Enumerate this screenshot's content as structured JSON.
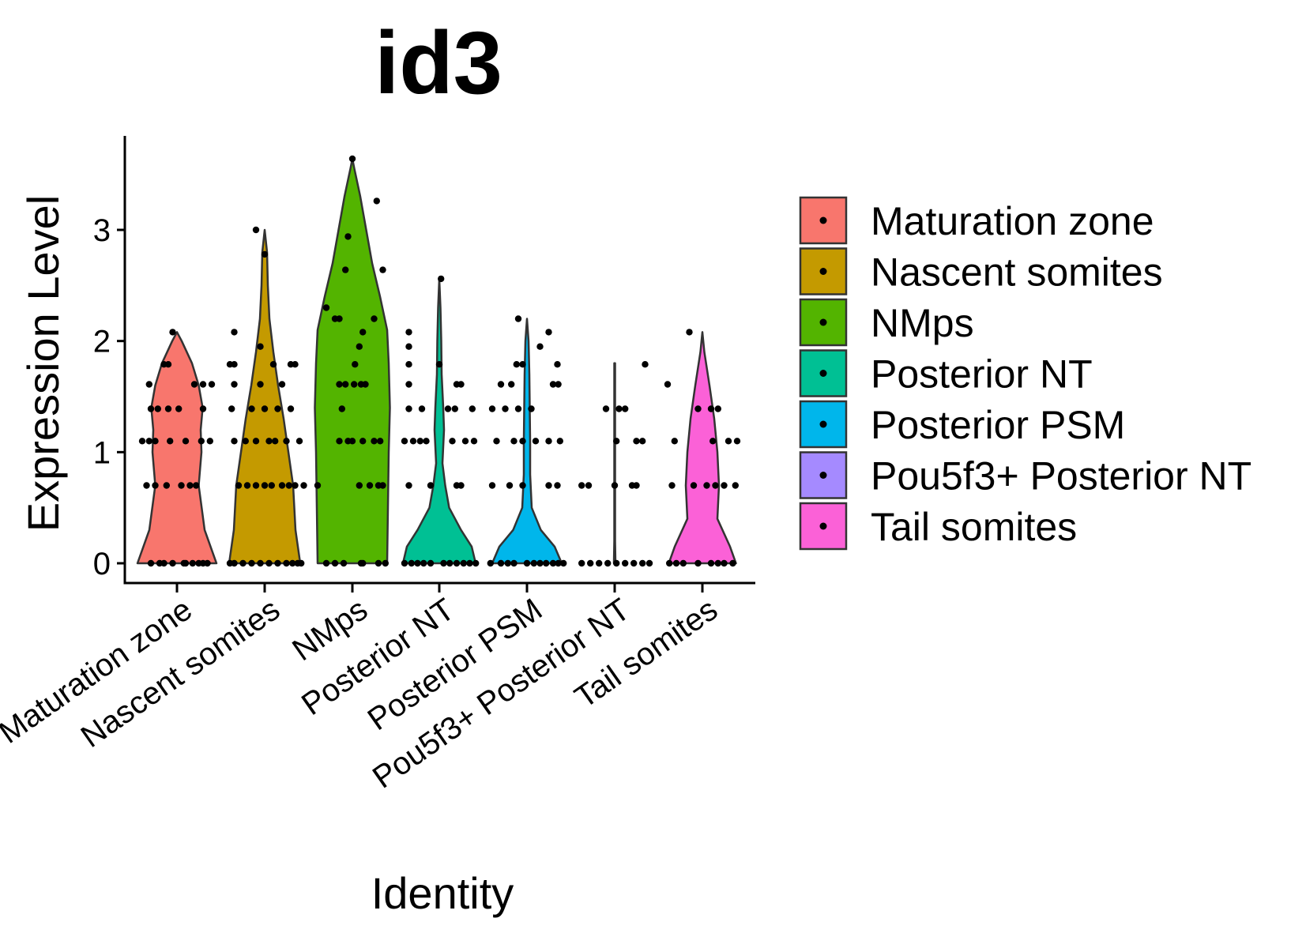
{
  "chart_data": {
    "type": "violin",
    "title": "id3",
    "xlabel": "Identity",
    "ylabel": "Expression Level",
    "ylim": [
      -0.15,
      3.85
    ],
    "yticks": [
      0,
      1,
      2,
      3
    ],
    "categories": [
      "Maturation zone",
      "Nascent somites",
      "NMps",
      "Posterior NT",
      "Posterior PSM",
      "Pou5f3+ Posterior NT",
      "Tail somites"
    ],
    "colors": {
      "Maturation zone": "#F8766D",
      "Nascent somites": "#C49A00",
      "NMps": "#53B400",
      "Posterior NT": "#00C094",
      "Posterior PSM": "#00B6EB",
      "Pou5f3+ Posterior NT": "#A58AFF",
      "Tail somites": "#FB61D7"
    },
    "legend": {
      "placement": "right",
      "entries": [
        "Maturation zone",
        "Nascent somites",
        "NMps",
        "Posterior NT",
        "Posterior PSM",
        "Pou5f3+ Posterior NT",
        "Tail somites"
      ]
    },
    "grid": false,
    "series": [
      {
        "name": "Maturation zone",
        "max": 2.08,
        "density": [
          [
            0,
            1.0
          ],
          [
            0.3,
            0.7
          ],
          [
            0.7,
            0.55
          ],
          [
            1.0,
            0.62
          ],
          [
            1.2,
            0.6
          ],
          [
            1.4,
            0.65
          ],
          [
            1.6,
            0.55
          ],
          [
            1.8,
            0.38
          ],
          [
            2.0,
            0.12
          ],
          [
            2.08,
            0
          ]
        ],
        "points": [
          [
            0.08,
            0
          ],
          [
            -0.2,
            0
          ],
          [
            0.25,
            0
          ],
          [
            -0.3,
            0
          ],
          [
            0.1,
            0
          ],
          [
            -0.05,
            0
          ],
          [
            0.3,
            0
          ],
          [
            -0.15,
            0
          ],
          [
            0.18,
            0
          ],
          [
            0.35,
            0
          ],
          [
            -0.35,
            0.7
          ],
          [
            -0.12,
            0.7
          ],
          [
            0.05,
            0.7
          ],
          [
            0.22,
            0.7
          ],
          [
            -0.25,
            0.7
          ],
          [
            0.15,
            0.7
          ],
          [
            -0.4,
            1.1
          ],
          [
            -0.25,
            1.1
          ],
          [
            -0.08,
            1.1
          ],
          [
            0.28,
            1.1
          ],
          [
            0.38,
            1.1
          ],
          [
            0.1,
            1.1
          ],
          [
            -0.32,
            1.1
          ],
          [
            -0.3,
            1.39
          ],
          [
            -0.1,
            1.39
          ],
          [
            0.02,
            1.39
          ],
          [
            0.3,
            1.39
          ],
          [
            -0.22,
            1.39
          ],
          [
            -0.32,
            1.61
          ],
          [
            0.2,
            1.61
          ],
          [
            0.3,
            1.61
          ],
          [
            0.4,
            1.61
          ],
          [
            -0.15,
            1.79
          ],
          [
            -0.1,
            1.79
          ],
          [
            -0.05,
            2.08
          ]
        ]
      },
      {
        "name": "Nascent somites",
        "max": 3.0,
        "density": [
          [
            0,
            0.9
          ],
          [
            0.3,
            0.78
          ],
          [
            0.7,
            0.72
          ],
          [
            1.0,
            0.6
          ],
          [
            1.3,
            0.48
          ],
          [
            1.6,
            0.34
          ],
          [
            1.9,
            0.22
          ],
          [
            2.2,
            0.12
          ],
          [
            2.5,
            0.08
          ],
          [
            2.8,
            0.06
          ],
          [
            3.0,
            0
          ]
        ],
        "points": [
          [
            -0.35,
            0
          ],
          [
            -0.15,
            0
          ],
          [
            0.05,
            0
          ],
          [
            0.25,
            0
          ],
          [
            0.38,
            0
          ],
          [
            -0.25,
            0
          ],
          [
            0.15,
            0
          ],
          [
            -0.05,
            0
          ],
          [
            0.32,
            0
          ],
          [
            -0.4,
            0
          ],
          [
            0.42,
            0
          ],
          [
            -0.3,
            0.7
          ],
          [
            -0.1,
            0.7
          ],
          [
            0.08,
            0.7
          ],
          [
            0.2,
            0.7
          ],
          [
            0.35,
            0.7
          ],
          [
            -0.2,
            0.7
          ],
          [
            0.0,
            0.7
          ],
          [
            0.28,
            0.7
          ],
          [
            0.45,
            0.7
          ],
          [
            -0.35,
            1.1
          ],
          [
            -0.1,
            1.1
          ],
          [
            0.12,
            1.1
          ],
          [
            0.25,
            1.1
          ],
          [
            -0.22,
            1.1
          ],
          [
            0.05,
            1.1
          ],
          [
            0.4,
            1.1
          ],
          [
            -0.38,
            1.39
          ],
          [
            0.0,
            1.39
          ],
          [
            0.15,
            1.39
          ],
          [
            0.3,
            1.39
          ],
          [
            -0.15,
            1.39
          ],
          [
            -0.35,
            1.61
          ],
          [
            -0.05,
            1.61
          ],
          [
            0.2,
            1.61
          ],
          [
            -0.4,
            1.79
          ],
          [
            -0.35,
            1.79
          ],
          [
            0.1,
            1.79
          ],
          [
            0.3,
            1.79
          ],
          [
            0.35,
            1.79
          ],
          [
            -0.05,
            1.95
          ],
          [
            -0.35,
            2.08
          ],
          [
            0.0,
            2.78
          ],
          [
            -0.1,
            3.0
          ]
        ]
      },
      {
        "name": "NMps",
        "max": 3.64,
        "density": [
          [
            0,
            0.88
          ],
          [
            0.5,
            0.9
          ],
          [
            1.0,
            0.92
          ],
          [
            1.4,
            0.95
          ],
          [
            1.8,
            0.92
          ],
          [
            2.1,
            0.88
          ],
          [
            2.4,
            0.7
          ],
          [
            2.7,
            0.5
          ],
          [
            3.0,
            0.35
          ],
          [
            3.3,
            0.2
          ],
          [
            3.55,
            0.05
          ],
          [
            3.64,
            0
          ]
        ],
        "points": [
          [
            -0.3,
            0
          ],
          [
            -0.1,
            0
          ],
          [
            0.1,
            0
          ],
          [
            0.3,
            0
          ],
          [
            0.12,
            0
          ],
          [
            -0.2,
            0
          ],
          [
            0.38,
            0
          ],
          [
            -0.4,
            0.7
          ],
          [
            0.08,
            0.7
          ],
          [
            0.2,
            0.7
          ],
          [
            0.35,
            0.7
          ],
          [
            0.3,
            0.7
          ],
          [
            -0.15,
            1.1
          ],
          [
            0.0,
            1.1
          ],
          [
            0.12,
            1.1
          ],
          [
            0.25,
            1.1
          ],
          [
            -0.05,
            1.1
          ],
          [
            0.32,
            1.1
          ],
          [
            -0.12,
            1.39
          ],
          [
            -0.15,
            1.61
          ],
          [
            -0.08,
            1.61
          ],
          [
            0.02,
            1.61
          ],
          [
            0.15,
            1.61
          ],
          [
            0.1,
            1.61
          ],
          [
            0.03,
            1.79
          ],
          [
            0.08,
            1.95
          ],
          [
            0.12,
            2.08
          ],
          [
            -0.2,
            2.2
          ],
          [
            -0.15,
            2.2
          ],
          [
            0.25,
            2.2
          ],
          [
            -0.3,
            2.3
          ],
          [
            -0.08,
            2.64
          ],
          [
            0.35,
            2.64
          ],
          [
            -0.05,
            2.94
          ],
          [
            0.28,
            3.26
          ],
          [
            0.0,
            3.64
          ]
        ]
      },
      {
        "name": "Posterior NT",
        "max": 2.56,
        "density": [
          [
            0,
            0.92
          ],
          [
            0.15,
            0.82
          ],
          [
            0.3,
            0.55
          ],
          [
            0.5,
            0.25
          ],
          [
            0.7,
            0.15
          ],
          [
            0.9,
            0.08
          ],
          [
            1.2,
            0.12
          ],
          [
            1.4,
            0.1
          ],
          [
            1.7,
            0.06
          ],
          [
            2.0,
            0.05
          ],
          [
            2.3,
            0.03
          ],
          [
            2.56,
            0
          ]
        ],
        "points": [
          [
            -0.4,
            0
          ],
          [
            -0.25,
            0
          ],
          [
            -0.1,
            0
          ],
          [
            0.05,
            0
          ],
          [
            0.2,
            0
          ],
          [
            0.35,
            0
          ],
          [
            -0.32,
            0
          ],
          [
            0.12,
            0
          ],
          [
            0.28,
            0
          ],
          [
            -0.18,
            0
          ],
          [
            0.42,
            0
          ],
          [
            -0.35,
            0.7
          ],
          [
            -0.1,
            0.7
          ],
          [
            0.2,
            0.7
          ],
          [
            0.25,
            0.7
          ],
          [
            -0.4,
            1.1
          ],
          [
            -0.3,
            1.1
          ],
          [
            -0.15,
            1.1
          ],
          [
            0.15,
            1.1
          ],
          [
            0.3,
            1.1
          ],
          [
            0.4,
            1.1
          ],
          [
            -0.22,
            1.1
          ],
          [
            -0.35,
            1.39
          ],
          [
            -0.2,
            1.39
          ],
          [
            0.1,
            1.39
          ],
          [
            0.18,
            1.39
          ],
          [
            0.38,
            1.39
          ],
          [
            -0.35,
            1.61
          ],
          [
            0.2,
            1.61
          ],
          [
            0.25,
            1.61
          ],
          [
            -0.35,
            1.79
          ],
          [
            0.0,
            1.79
          ],
          [
            -0.35,
            1.95
          ],
          [
            -0.35,
            2.08
          ],
          [
            0.02,
            2.56
          ]
        ]
      },
      {
        "name": "Posterior PSM",
        "max": 2.2,
        "density": [
          [
            0,
            0.88
          ],
          [
            0.15,
            0.7
          ],
          [
            0.3,
            0.35
          ],
          [
            0.5,
            0.12
          ],
          [
            0.8,
            0.08
          ],
          [
            1.1,
            0.08
          ],
          [
            1.4,
            0.07
          ],
          [
            1.7,
            0.06
          ],
          [
            2.0,
            0.04
          ],
          [
            2.2,
            0
          ]
        ],
        "points": [
          [
            -0.42,
            0
          ],
          [
            -0.3,
            0
          ],
          [
            -0.15,
            0
          ],
          [
            0.0,
            0
          ],
          [
            0.15,
            0
          ],
          [
            0.3,
            0
          ],
          [
            0.42,
            0
          ],
          [
            -0.22,
            0
          ],
          [
            0.08,
            0
          ],
          [
            0.22,
            0
          ],
          [
            0.36,
            0
          ],
          [
            -0.4,
            0.7
          ],
          [
            -0.2,
            0.7
          ],
          [
            -0.05,
            0.7
          ],
          [
            0.25,
            0.7
          ],
          [
            0.35,
            0.7
          ],
          [
            -0.35,
            1.1
          ],
          [
            -0.15,
            1.1
          ],
          [
            -0.05,
            1.1
          ],
          [
            0.1,
            1.1
          ],
          [
            0.25,
            1.1
          ],
          [
            0.38,
            1.1
          ],
          [
            -0.4,
            1.39
          ],
          [
            -0.25,
            1.39
          ],
          [
            -0.1,
            1.39
          ],
          [
            0.05,
            1.39
          ],
          [
            -0.3,
            1.61
          ],
          [
            -0.18,
            1.61
          ],
          [
            0.3,
            1.61
          ],
          [
            0.36,
            1.61
          ],
          [
            -0.12,
            1.79
          ],
          [
            -0.05,
            1.79
          ],
          [
            0.35,
            1.79
          ],
          [
            0.15,
            1.95
          ],
          [
            0.25,
            2.08
          ],
          [
            -0.1,
            2.2
          ]
        ]
      },
      {
        "name": "Pou5f3+ Posterior NT",
        "max": 1.8,
        "density": [
          [
            0,
            0.02
          ],
          [
            0.2,
            0.01
          ],
          [
            1.8,
            0.01
          ]
        ],
        "points": [
          [
            -0.38,
            0
          ],
          [
            -0.28,
            0
          ],
          [
            -0.18,
            0
          ],
          [
            -0.08,
            0
          ],
          [
            0.02,
            0
          ],
          [
            0.12,
            0
          ],
          [
            0.22,
            0
          ],
          [
            0.32,
            0
          ],
          [
            0.4,
            0
          ],
          [
            -0.38,
            0.7
          ],
          [
            -0.3,
            0.7
          ],
          [
            0.0,
            0.7
          ],
          [
            0.2,
            0.7
          ],
          [
            0.25,
            0.7
          ],
          [
            0.02,
            1.1
          ],
          [
            0.25,
            1.1
          ],
          [
            0.32,
            1.1
          ],
          [
            -0.1,
            1.39
          ],
          [
            0.05,
            1.39
          ],
          [
            0.12,
            1.39
          ],
          [
            0.35,
            1.79
          ]
        ]
      },
      {
        "name": "Tail somites",
        "max": 2.08,
        "density": [
          [
            0,
            0.85
          ],
          [
            0.15,
            0.7
          ],
          [
            0.4,
            0.38
          ],
          [
            0.7,
            0.42
          ],
          [
            1.0,
            0.38
          ],
          [
            1.3,
            0.3
          ],
          [
            1.6,
            0.18
          ],
          [
            1.9,
            0.05
          ],
          [
            2.08,
            0
          ]
        ],
        "points": [
          [
            -0.38,
            0
          ],
          [
            -0.22,
            0
          ],
          [
            -0.05,
            0
          ],
          [
            0.1,
            0
          ],
          [
            0.25,
            0
          ],
          [
            0.35,
            0
          ],
          [
            -0.3,
            0
          ],
          [
            0.18,
            0
          ],
          [
            -0.35,
            0.7
          ],
          [
            -0.1,
            0.7
          ],
          [
            0.05,
            0.7
          ],
          [
            0.15,
            0.7
          ],
          [
            0.25,
            0.7
          ],
          [
            0.38,
            0.7
          ],
          [
            -0.32,
            1.1
          ],
          [
            0.12,
            1.1
          ],
          [
            0.3,
            1.1
          ],
          [
            0.4,
            1.1
          ],
          [
            -0.05,
            1.39
          ],
          [
            0.1,
            1.39
          ],
          [
            0.18,
            1.39
          ],
          [
            -0.4,
            1.61
          ],
          [
            -0.15,
            2.08
          ]
        ]
      }
    ]
  }
}
